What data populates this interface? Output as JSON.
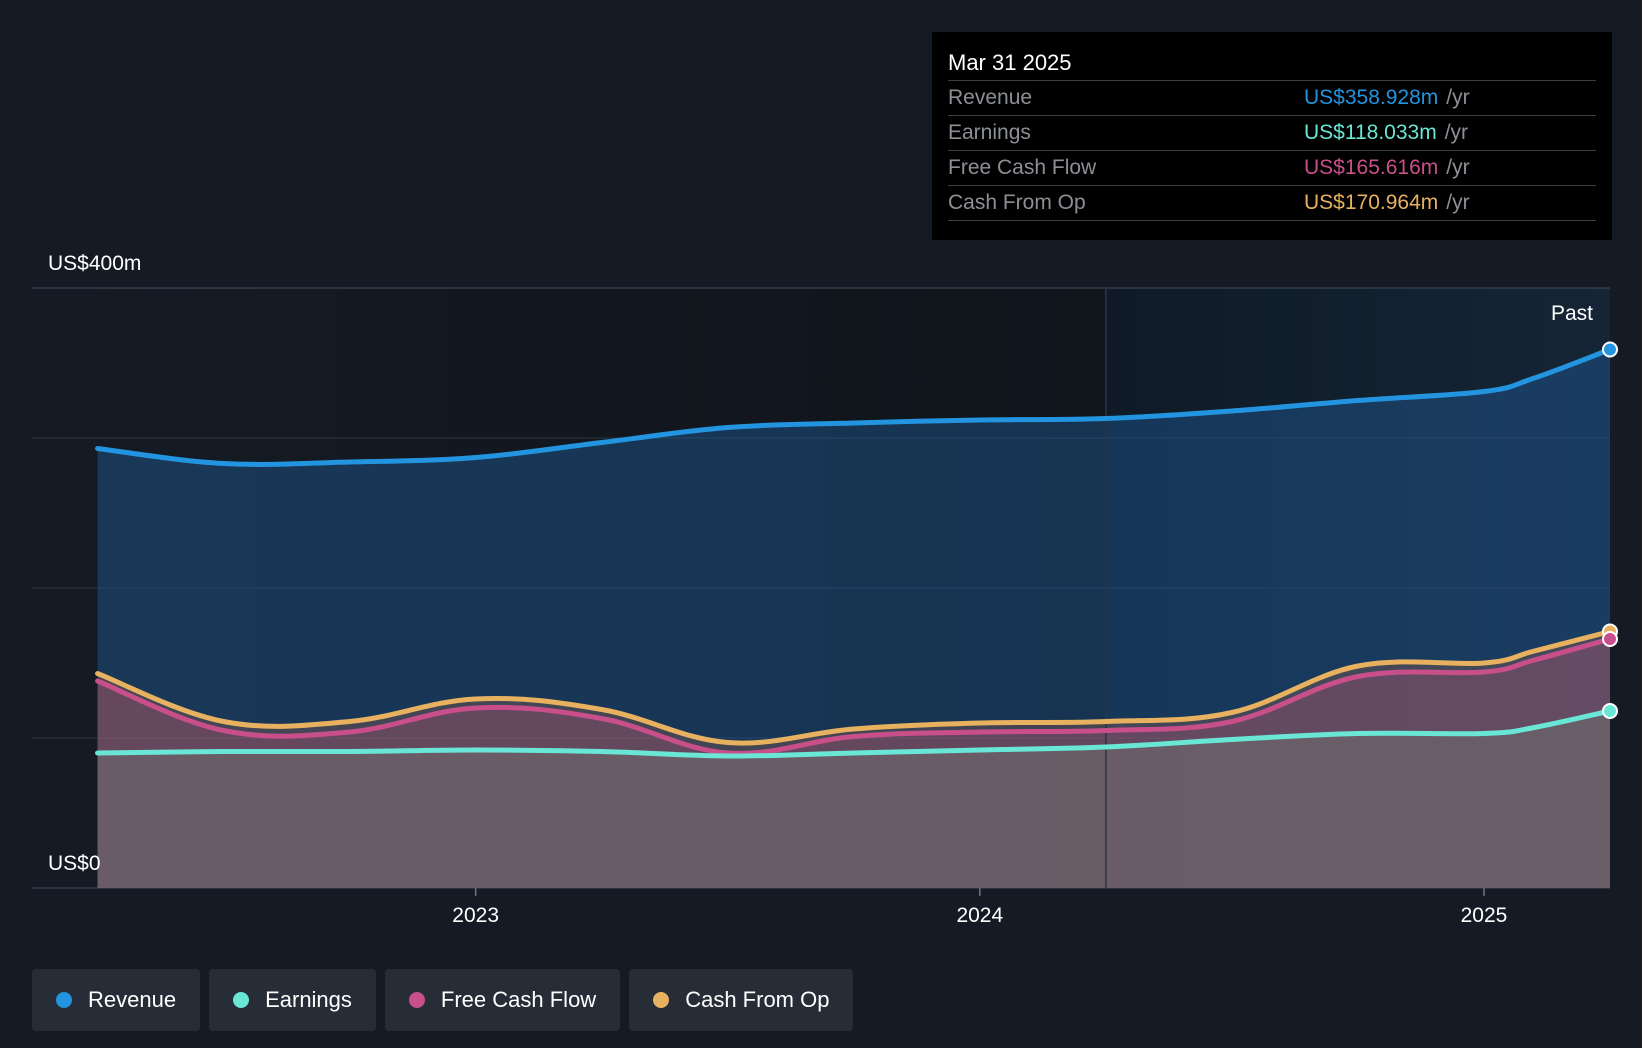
{
  "tooltip": {
    "date": "Mar 31 2025",
    "rows": [
      {
        "label": "Revenue",
        "value": "US$358.928m",
        "unit": "/yr",
        "color": "#2394df"
      },
      {
        "label": "Earnings",
        "value": "US$118.033m",
        "unit": "/yr",
        "color": "#6ae6d6"
      },
      {
        "label": "Free Cash Flow",
        "value": "US$165.616m",
        "unit": "/yr",
        "color": "#c84f8a"
      },
      {
        "label": "Cash From Op",
        "value": "US$170.964m",
        "unit": "/yr",
        "color": "#e8b15f"
      }
    ]
  },
  "legend": [
    {
      "label": "Revenue",
      "color": "#2394df"
    },
    {
      "label": "Earnings",
      "color": "#6ae6d6"
    },
    {
      "label": "Free Cash Flow",
      "color": "#c84f8a"
    },
    {
      "label": "Cash From Op",
      "color": "#e8b15f"
    }
  ],
  "chart_data": {
    "type": "area",
    "y_top_label": "US$400m",
    "y_bottom_label": "US$0",
    "past_label": "Past",
    "ylim": [
      0,
      400
    ],
    "xlim": [
      2022.12,
      2025.25
    ],
    "xticks": [
      {
        "value": 2023,
        "label": "2023"
      },
      {
        "value": 2024,
        "label": "2024"
      },
      {
        "value": 2025,
        "label": "2025"
      }
    ],
    "past_start": 2024.25,
    "grid": true,
    "legend_position": "bottom-left",
    "series": [
      {
        "name": "Revenue",
        "color": "#2394df",
        "x": [
          2022.25,
          2022.5,
          2022.75,
          2023.0,
          2023.25,
          2023.5,
          2023.75,
          2024.0,
          2024.25,
          2024.5,
          2024.75,
          2025.0,
          2025.1,
          2025.25
        ],
        "y": [
          293,
          283,
          284,
          287,
          297,
          307,
          310,
          312,
          313,
          318,
          325,
          331,
          340,
          359
        ]
      },
      {
        "name": "Cash From Op",
        "color": "#e8b15f",
        "x": [
          2022.25,
          2022.5,
          2022.75,
          2023.0,
          2023.25,
          2023.5,
          2023.75,
          2024.0,
          2024.25,
          2024.5,
          2024.75,
          2025.0,
          2025.1,
          2025.25
        ],
        "y": [
          143,
          111,
          111,
          126,
          119,
          97,
          106,
          110,
          111,
          117,
          148,
          150,
          158,
          171
        ]
      },
      {
        "name": "Free Cash Flow",
        "color": "#c84f8a",
        "x": [
          2022.25,
          2022.5,
          2022.75,
          2023.0,
          2023.25,
          2023.5,
          2023.75,
          2024.0,
          2024.25,
          2024.5,
          2024.75,
          2025.0,
          2025.1,
          2025.25
        ],
        "y": [
          138,
          105,
          104,
          120,
          113,
          90,
          101,
          104,
          105,
          111,
          141,
          144,
          152,
          166
        ]
      },
      {
        "name": "Earnings",
        "color": "#6ae6d6",
        "x": [
          2022.25,
          2022.5,
          2022.75,
          2023.0,
          2023.25,
          2023.5,
          2023.75,
          2024.0,
          2024.25,
          2024.5,
          2024.75,
          2025.0,
          2025.1,
          2025.25
        ],
        "y": [
          90,
          91,
          91,
          92,
          91,
          88,
          90,
          92,
          94,
          99,
          103,
          103,
          107,
          118
        ]
      }
    ]
  }
}
